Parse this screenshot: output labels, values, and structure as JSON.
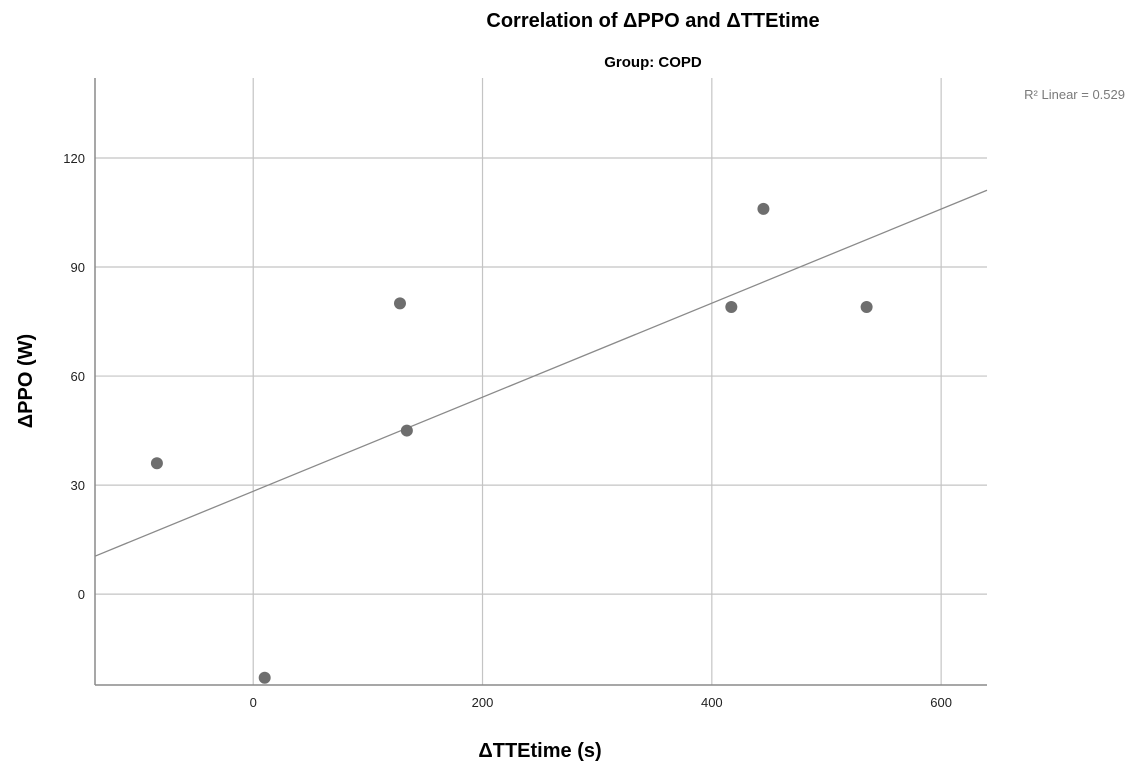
{
  "chart_data": {
    "type": "scatter",
    "title": "Correlation of ΔPPO and ΔTTEtime",
    "subtitle": "Group: COPD",
    "xlabel": "ΔTTEtime (s)",
    "ylabel": "ΔPPO (W)",
    "xlim": [
      -138,
      640
    ],
    "ylim": [
      -25,
      142
    ],
    "x_ticks": [
      0,
      200,
      400,
      600
    ],
    "y_ticks": [
      0,
      30,
      60,
      90,
      120
    ],
    "grid": true,
    "points": [
      {
        "x": -84,
        "y": 36
      },
      {
        "x": 10,
        "y": -23
      },
      {
        "x": 128,
        "y": 80
      },
      {
        "x": 134,
        "y": 45
      },
      {
        "x": 417,
        "y": 79
      },
      {
        "x": 445,
        "y": 106
      },
      {
        "x": 535,
        "y": 79
      }
    ],
    "fit_line": {
      "type": "linear",
      "intercept": 28.3,
      "slope": 0.1294
    },
    "annotation": "R² Linear = 0.529"
  }
}
